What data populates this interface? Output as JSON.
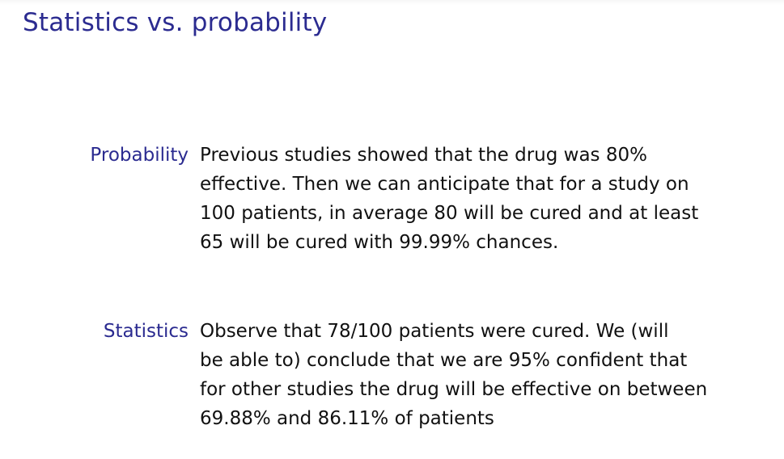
{
  "slide": {
    "title": "Statistics vs. probability",
    "definitions": [
      {
        "term": "Probability",
        "lines": [
          "Previous studies showed that the drug was 80%",
          "effective. Then we can anticipate that for a study on",
          "100 patients, in average 80 will be cured and at least",
          "65 will be cured with 99.99% chances."
        ]
      },
      {
        "term": "Statistics",
        "lines": [
          "Observe that 78/100 patients were cured. We (will",
          "be able to) conclude that we are 95% confident that",
          "for other studies the drug will be effective on between",
          "69.88% and 86.11% of patients"
        ]
      }
    ],
    "colors": {
      "title": "#2b2b90",
      "term": "#2b2b90",
      "body_text": "#111111",
      "background": "#ffffff"
    }
  }
}
